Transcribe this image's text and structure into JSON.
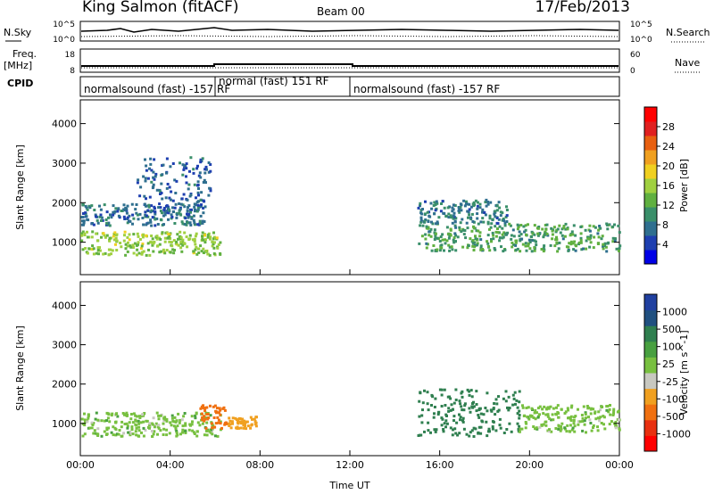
{
  "header": {
    "radar": "King Salmon (fitACF)",
    "beam": "Beam 00",
    "date": "17/Feb/2013"
  },
  "status_panels": {
    "nsky_label": "N.Sky",
    "nsearch_label": "N.Search",
    "noise_ticks": [
      "10^5",
      "10^0"
    ],
    "freq_label_1": "Freq.",
    "freq_label_2": "[MHz]",
    "freq_ticks": [
      "18",
      "8"
    ],
    "nave_label": "Nave",
    "nave_ticks": [
      "60",
      "0"
    ],
    "cpid_label": "CPID",
    "cpid_segments": [
      {
        "label": "normalsound (fast) -157 RF",
        "start_h": 0,
        "end_h": 6
      },
      {
        "label": "normal (fast) 151 RF",
        "start_h": 6,
        "end_h": 12
      },
      {
        "label": "normalsound (fast) -157 RF",
        "start_h": 12,
        "end_h": 24
      }
    ]
  },
  "colorbars": {
    "power": {
      "label": "Power [dB]",
      "ticks": [
        "4",
        "8",
        "12",
        "16",
        "20",
        "24",
        "28"
      ],
      "colors": [
        "#0000e6",
        "#1e3fb0",
        "#2f6f8f",
        "#3a8f6a",
        "#60b040",
        "#a0d040",
        "#f0d020",
        "#f0a020",
        "#e86010",
        "#e02020",
        "#ff0000"
      ]
    },
    "velocity": {
      "label": "Velocity [m s^-1]",
      "ticks": [
        "1000",
        "500",
        "100",
        "25",
        "-25",
        "-100",
        "-500",
        "-1000"
      ],
      "colors": [
        "#2040a0",
        "#205080",
        "#2f7f4f",
        "#48a040",
        "#78c040",
        "#c8c8c0",
        "#f0a020",
        "#f07010",
        "#e83010",
        "#ff0000"
      ]
    }
  },
  "chart_data": [
    {
      "type": "heatmap",
      "title": "",
      "ylabel": "Slant Range [km]",
      "xlabel": "",
      "xlim_hours": [
        0,
        24
      ],
      "ylim_km": [
        180,
        4600
      ],
      "yticks": [
        "1000",
        "2000",
        "3000",
        "4000"
      ],
      "xticks": [
        "00:00",
        "04:00",
        "08:00",
        "12:00",
        "16:00",
        "20:00",
        "00:00"
      ],
      "colorbar": "Power [dB]",
      "bands": [
        {
          "t0": 0.0,
          "t1": 6.2,
          "r0": 700,
          "r1": 1300,
          "value_db": 14
        },
        {
          "t0": 0.0,
          "t1": 5.5,
          "r0": 1450,
          "r1": 2000,
          "value_db": 6
        },
        {
          "t0": 2.5,
          "t1": 5.8,
          "r0": 1900,
          "r1": 3200,
          "value_db": 5
        },
        {
          "t0": 15.0,
          "t1": 24.0,
          "r0": 800,
          "r1": 1500,
          "value_db": 10
        },
        {
          "t0": 15.0,
          "t1": 19.0,
          "r0": 1500,
          "r1": 2100,
          "value_db": 7
        }
      ]
    },
    {
      "type": "heatmap",
      "title": "",
      "ylabel": "Slant Range [km]",
      "xlabel": "Time UT",
      "xlim_hours": [
        0,
        24
      ],
      "ylim_km": [
        180,
        4600
      ],
      "yticks": [
        "1000",
        "2000",
        "3000",
        "4000"
      ],
      "xticks": [
        "00:00",
        "04:00",
        "08:00",
        "12:00",
        "16:00",
        "20:00",
        "00:00"
      ],
      "colorbar": "Velocity [m s^-1]",
      "bands": [
        {
          "t0": 0.0,
          "t1": 6.2,
          "r0": 700,
          "r1": 1300,
          "value_ms": 0
        },
        {
          "t0": 5.3,
          "t1": 6.5,
          "r0": 900,
          "r1": 1500,
          "value_ms": -700
        },
        {
          "t0": 6.5,
          "t1": 7.8,
          "r0": 900,
          "r1": 1200,
          "value_ms": -300
        },
        {
          "t0": 15.0,
          "t1": 19.5,
          "r0": 700,
          "r1": 1900,
          "value_ms": 150
        },
        {
          "t0": 19.5,
          "t1": 24.0,
          "r0": 800,
          "r1": 1500,
          "value_ms": 0
        }
      ]
    }
  ]
}
